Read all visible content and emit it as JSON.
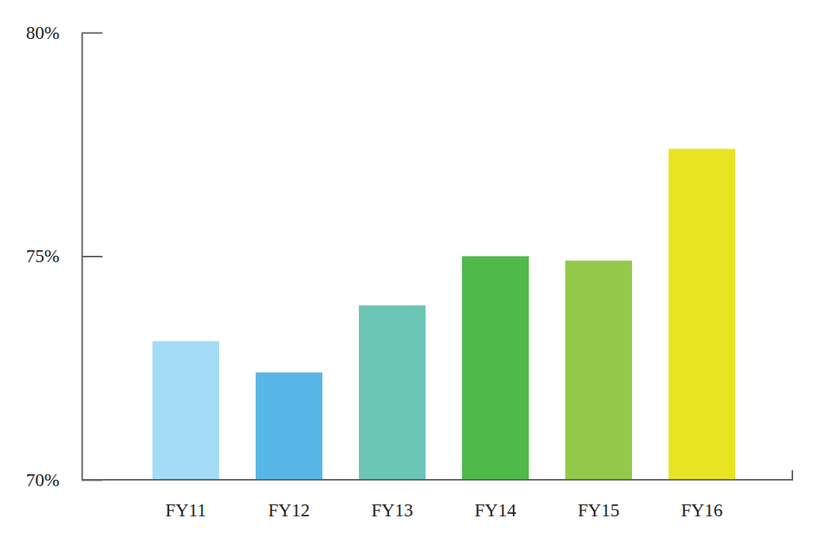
{
  "chart_data": {
    "type": "bar",
    "categories": [
      "FY11",
      "FY12",
      "FY13",
      "FY14",
      "FY15",
      "FY16"
    ],
    "values": [
      73.1,
      72.4,
      73.9,
      75.0,
      74.9,
      77.4
    ],
    "colors": [
      "#a4dcf8",
      "#58b6e6",
      "#6cc6b6",
      "#50b94a",
      "#94c94a",
      "#e8e424"
    ],
    "ylim": [
      70,
      80
    ],
    "yticks": [
      {
        "value": 70,
        "label": "70%"
      },
      {
        "value": 75,
        "label": "75%"
      },
      {
        "value": 80,
        "label": "80%"
      }
    ]
  }
}
